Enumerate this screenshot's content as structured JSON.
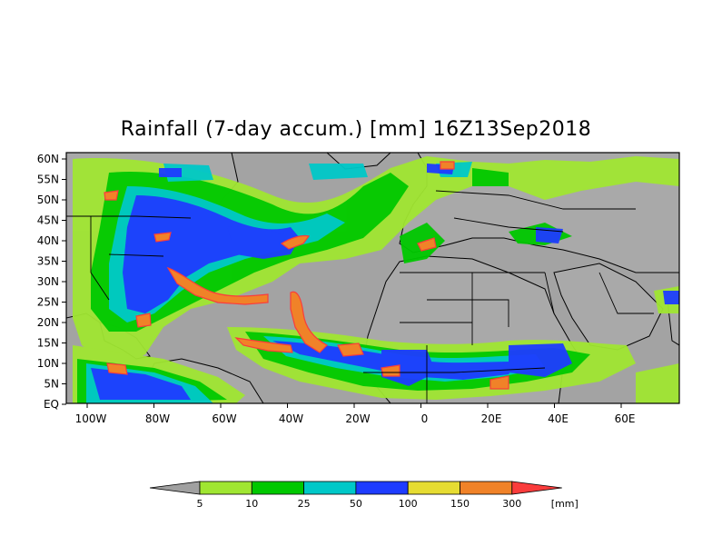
{
  "title": "Rainfall (7-day accum.) [mm] 16Z13Sep2018",
  "lat_labels": [
    "60N",
    "55N",
    "50N",
    "45N",
    "40N",
    "35N",
    "30N",
    "25N",
    "20N",
    "15N",
    "10N",
    "5N",
    "EQ"
  ],
  "lon_labels": [
    "100W",
    "80W",
    "60W",
    "40W",
    "20W",
    "0",
    "20E",
    "40E",
    "60E"
  ],
  "legend": {
    "unit": "[mm]",
    "thresholds": [
      "5",
      "10",
      "25",
      "50",
      "100",
      "150",
      "300"
    ],
    "colors": {
      "below": "#a0a0a0",
      "5-10": "#a0e632",
      "10-25": "#00c800",
      "25-50": "#00c8c8",
      "50-100": "#1e3cff",
      "100-150": "#e6dc32",
      "150-300": "#f08228",
      "above": "#fa3c3c"
    }
  },
  "map_colors": {
    "ocean": "#a3a3a3",
    "land": "#a7a7a7",
    "boundary": "#000000"
  }
}
